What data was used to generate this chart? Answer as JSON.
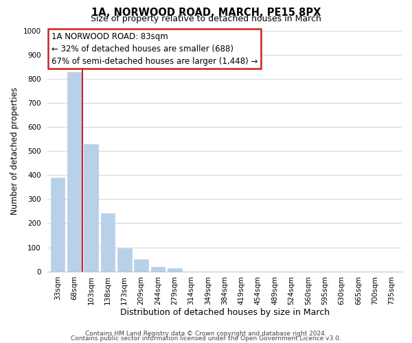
{
  "title_line1": "1A, NORWOOD ROAD, MARCH, PE15 8PX",
  "title_line2": "Size of property relative to detached houses in March",
  "xlabel": "Distribution of detached houses by size in March",
  "ylabel": "Number of detached properties",
  "bar_labels": [
    "33sqm",
    "68sqm",
    "103sqm",
    "138sqm",
    "173sqm",
    "209sqm",
    "244sqm",
    "279sqm",
    "314sqm",
    "349sqm",
    "384sqm",
    "419sqm",
    "454sqm",
    "489sqm",
    "524sqm",
    "560sqm",
    "595sqm",
    "630sqm",
    "665sqm",
    "700sqm",
    "735sqm"
  ],
  "bar_values": [
    390,
    828,
    530,
    240,
    95,
    50,
    20,
    14,
    0,
    0,
    0,
    0,
    0,
    0,
    0,
    0,
    0,
    0,
    0,
    0,
    0
  ],
  "bar_color": "#b8d0e8",
  "highlight_bar_index": 1,
  "highlight_color": "#cc2222",
  "ylim": [
    0,
    1000
  ],
  "yticks": [
    0,
    100,
    200,
    300,
    400,
    500,
    600,
    700,
    800,
    900,
    1000
  ],
  "annotation_line1": "1A NORWOOD ROAD: 83sqm",
  "annotation_line2": "← 32% of detached houses are smaller (688)",
  "annotation_line3": "67% of semi-detached houses are larger (1,448) →",
  "footer_line1": "Contains HM Land Registry data © Crown copyright and database right 2024.",
  "footer_line2": "Contains public sector information licensed under the Open Government Licence v3.0.",
  "background_color": "#ffffff",
  "grid_color": "#ccd8e8",
  "annotation_box_facecolor": "#ffffff",
  "annotation_box_edgecolor": "#cc2222",
  "title1_fontsize": 10.5,
  "title2_fontsize": 9,
  "ylabel_fontsize": 8.5,
  "xlabel_fontsize": 9,
  "tick_fontsize": 7.5,
  "ann_fontsize": 8.5,
  "footer_fontsize": 6.5
}
